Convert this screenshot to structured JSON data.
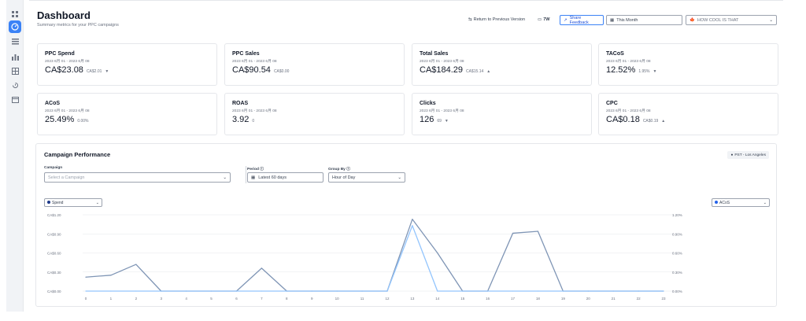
{
  "sidebar": {
    "icons": [
      "grid-icon",
      "dashboard-icon",
      "list-icon",
      "bar-chart-icon",
      "table-icon",
      "history-icon",
      "calendar-icon"
    ]
  },
  "header": {
    "title": "Dashboard",
    "subtitle": "Summary metrics for your PPC campaigns",
    "return_label": "Return to Previous Version",
    "return_icon": "⇆",
    "layout_icon": "▭",
    "layout_label": "7W",
    "feedback_label": "Share Feedback",
    "feedback_icon": "↗",
    "date_icon": "▦",
    "date_value": "This Month",
    "store_flag": "🍁",
    "store_value": "HOW COOL IS THAT",
    "chevron": "⌄"
  },
  "cards": [
    {
      "title": "PPC Spend",
      "range": "2023 6月 01 - 2023 6月 08",
      "value": "CA$23.08",
      "delta": "CA$2.01",
      "arrow": "▼",
      "dir": "up"
    },
    {
      "title": "PPC Sales",
      "range": "2023 6月 01 - 2023 6月 08",
      "value": "CA$90.54",
      "delta": "CA$0.00",
      "arrow": "",
      "dir": "none"
    },
    {
      "title": "Total Sales",
      "range": "2023 6月 01 - 2023 6月 08",
      "value": "CA$184.29",
      "delta": "CA$15.14",
      "arrow": "▲",
      "dir": "down"
    },
    {
      "title": "TACoS",
      "range": "2023 6月 01 - 2023 6月 08",
      "value": "12.52%",
      "delta": "1.95%",
      "arrow": "▼",
      "dir": "down"
    },
    {
      "title": "ACoS",
      "range": "2023 6月 01 - 2023 6月 08",
      "value": "25.49%",
      "delta": "0.00%",
      "arrow": "",
      "dir": "none"
    },
    {
      "title": "ROAS",
      "range": "2023 6月 01 - 2023 6月 08",
      "value": "3.92",
      "delta": "0",
      "arrow": "",
      "dir": "none"
    },
    {
      "title": "Clicks",
      "range": "2023 6月 01 - 2023 6月 08",
      "value": "126",
      "delta": "69",
      "arrow": "▼",
      "dir": "up"
    },
    {
      "title": "CPC",
      "range": "2023 6月 01 - 2023 6月 08",
      "value": "CA$0.18",
      "delta": "CA$0.19",
      "arrow": "▲",
      "dir": "up"
    }
  ],
  "performance": {
    "title": "Campaign Performance",
    "timezone": "PST - Los Angeles",
    "campaign_label": "Campaign",
    "campaign_placeholder": "Select a Campaign",
    "period_label": "Period ⓘ",
    "period_value": "Latest 60 days",
    "groupby_label": "Group By ⓘ",
    "groupby_value": "Hour of Day",
    "left_metric": "Spend",
    "right_metric": "ACoS"
  },
  "colors": {
    "accent": "#3b82f6",
    "spend_line": "#7f95b5",
    "acos_line": "#93c5fd",
    "spend_dot": "#1e3a8a",
    "acos_dot": "#2563eb"
  },
  "chart_data": {
    "type": "line",
    "x": [
      0,
      1,
      2,
      3,
      4,
      5,
      6,
      7,
      8,
      9,
      10,
      11,
      12,
      13,
      14,
      15,
      16,
      17,
      18,
      19,
      20,
      21,
      22,
      23
    ],
    "left_ticks": [
      "CA$0.00",
      "CA$0.30",
      "CA$0.60",
      "CA$0.90",
      "CA$1.20"
    ],
    "right_ticks": [
      "0.00%",
      "0.30%",
      "0.60%",
      "0.90%",
      "1.20%"
    ],
    "ylim": [
      0,
      1.2
    ],
    "y2lim": [
      0,
      1.2
    ],
    "series": [
      {
        "name": "Spend",
        "axis": "left",
        "values": [
          0.22,
          0.25,
          0.42,
          0,
          0,
          0,
          0,
          0.36,
          0,
          0,
          0,
          0,
          0,
          1.13,
          0.6,
          0,
          0,
          0.91,
          0.94,
          0,
          0,
          0,
          0,
          0
        ]
      },
      {
        "name": "ACoS",
        "axis": "right",
        "values": [
          0,
          0,
          0,
          0,
          0,
          0,
          0,
          0,
          0,
          0,
          0,
          0,
          0,
          1.03,
          0,
          0,
          0,
          0,
          0,
          0,
          0,
          0,
          0,
          0
        ]
      }
    ]
  }
}
